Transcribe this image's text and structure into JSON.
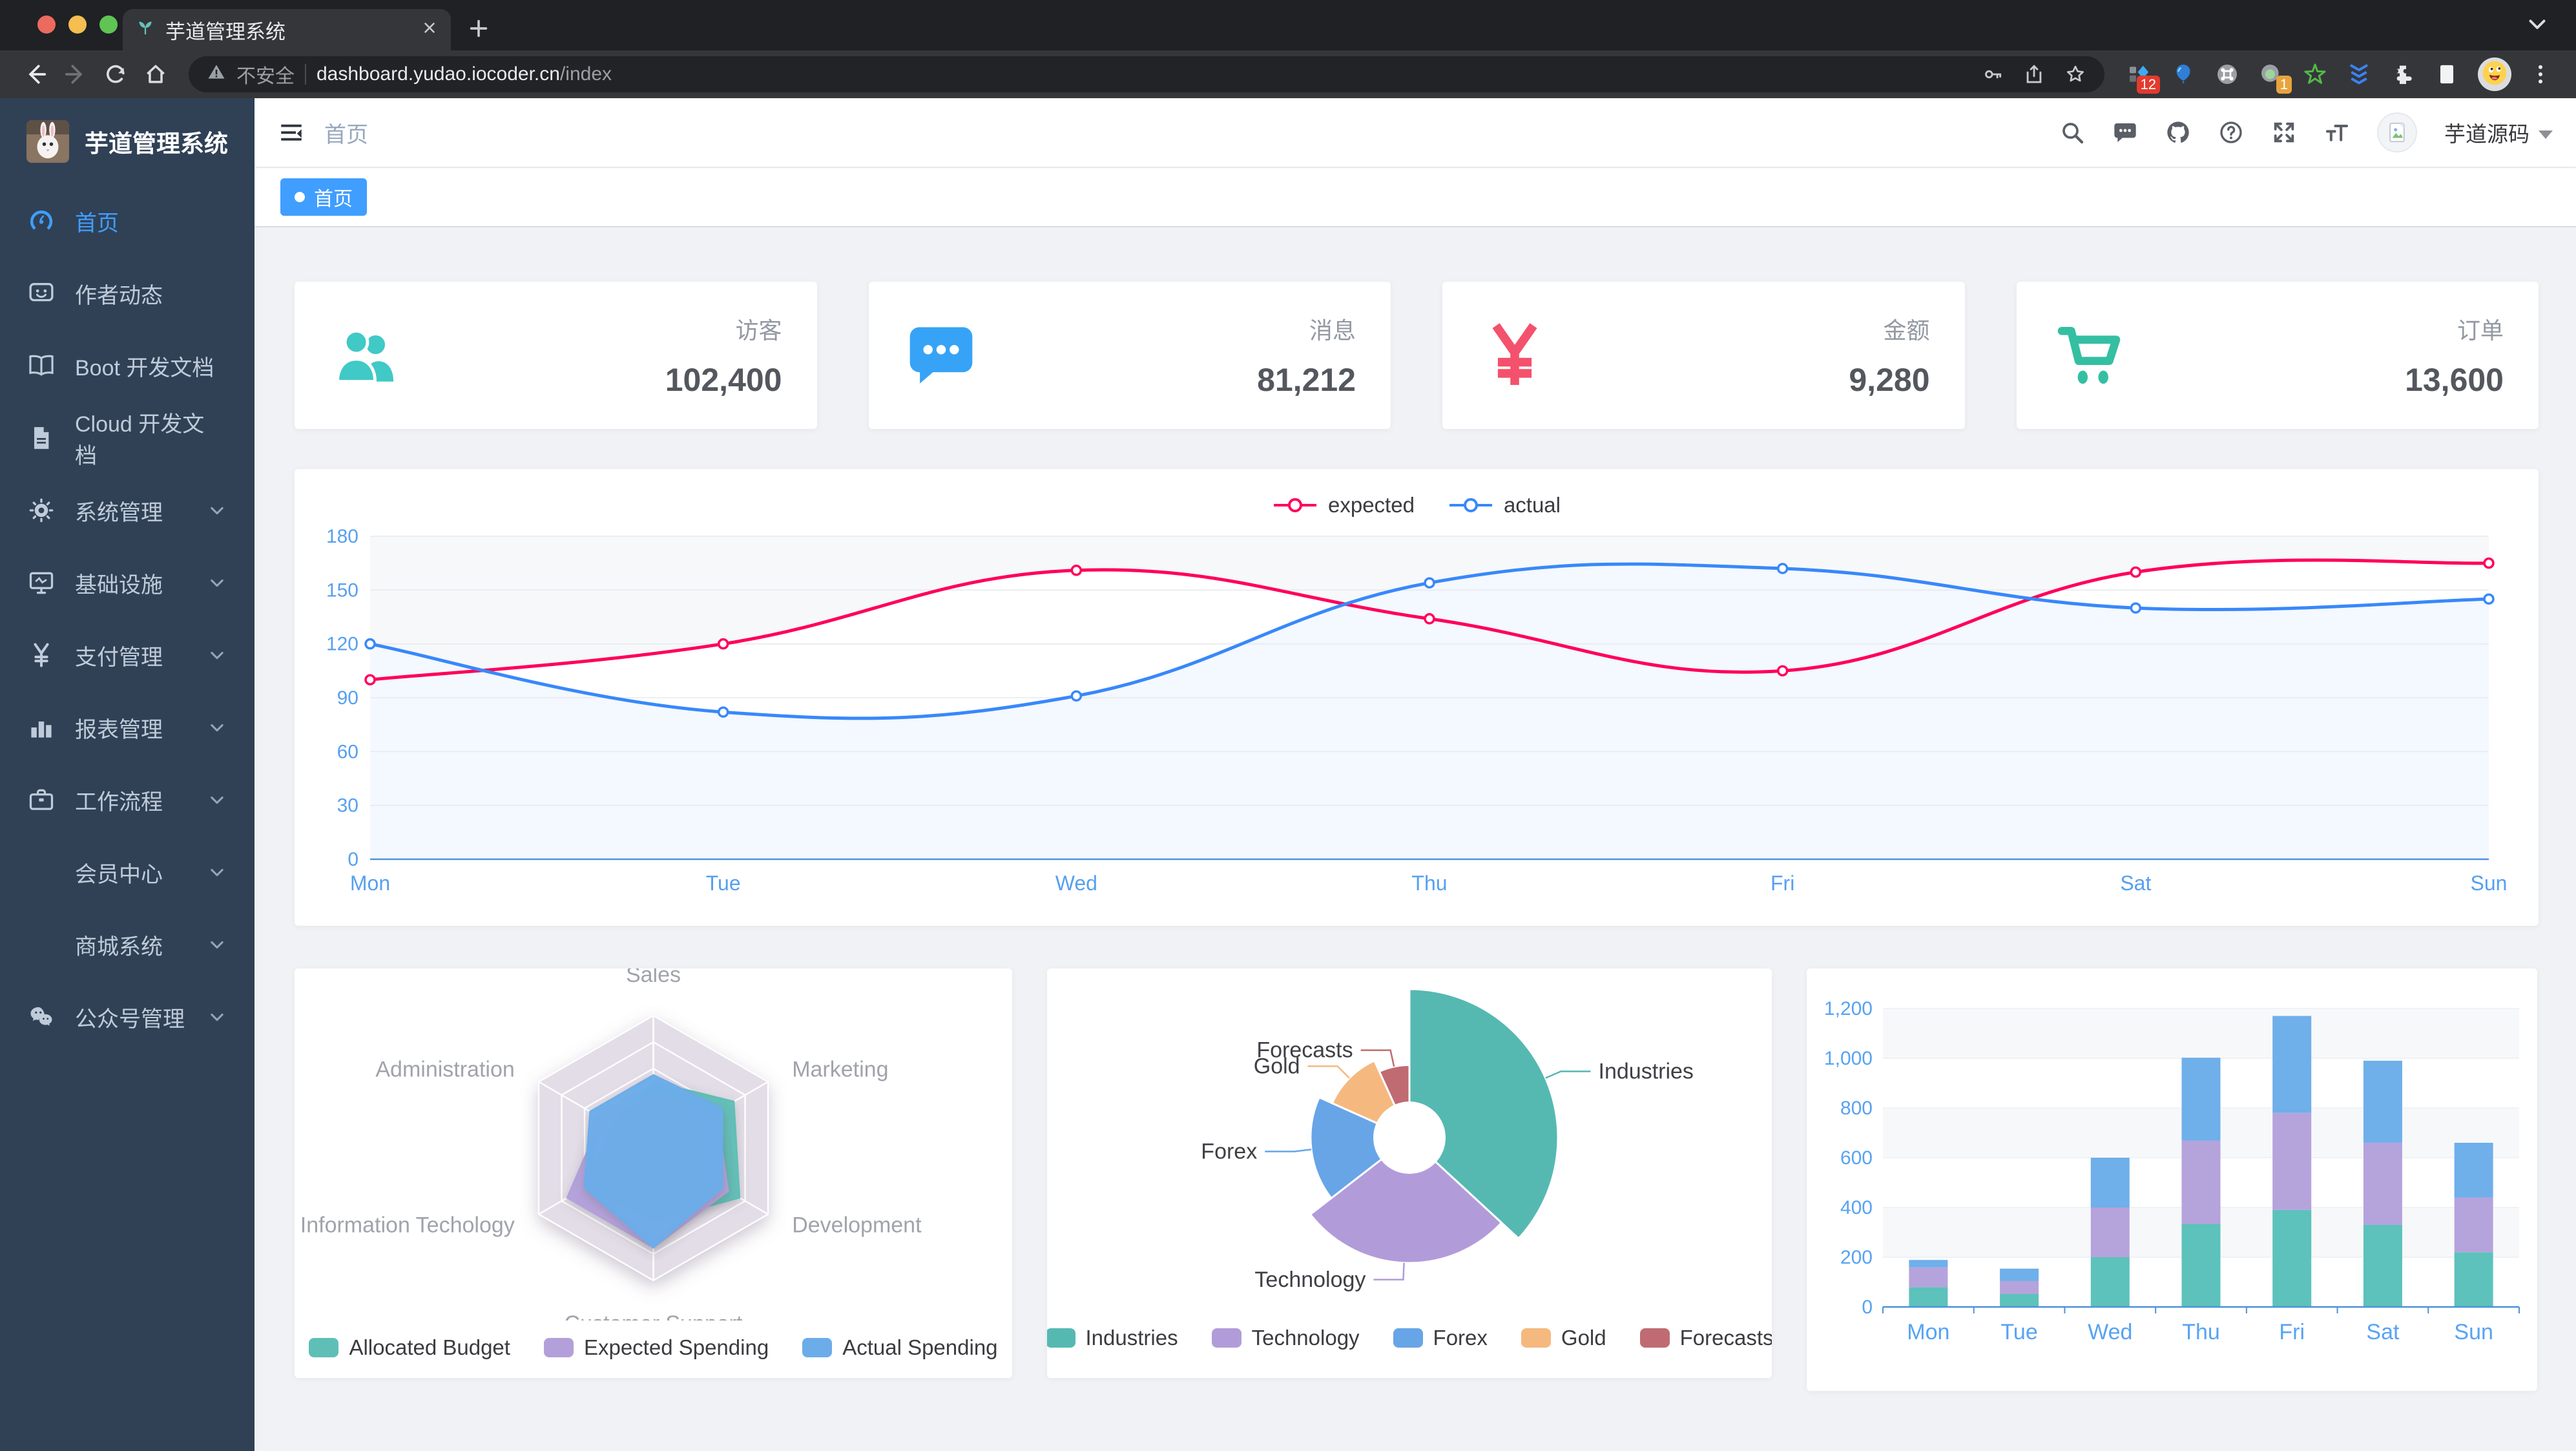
{
  "browser": {
    "tab_title": "芋道管理系统",
    "favicon": "sprout-icon",
    "traffic_lights": [
      "#EC6A5E",
      "#F4BE50",
      "#5FC454"
    ],
    "nav_buttons": [
      "back-icon",
      "forward-icon",
      "reload-icon",
      "home-icon"
    ],
    "security_label": "不安全",
    "url_host": "dashboard.yudao.iocoder.cn",
    "url_path": "/index",
    "omnibox_icons": [
      "key-icon",
      "share-icon",
      "bookmark-star-icon"
    ],
    "extensions": [
      {
        "icon": "extension-blue-diamond-icon",
        "badge": "12"
      },
      {
        "icon": "extension-balloon-icon"
      },
      {
        "icon": "extension-command-icon"
      },
      {
        "icon": "extension-green-dot-icon",
        "badge": "1"
      },
      {
        "icon": "extension-green-star-icon"
      },
      {
        "icon": "extension-blue-chevrons-icon"
      },
      {
        "icon": "extension-puzzle-icon"
      },
      {
        "icon": "extension-reader-icon"
      }
    ],
    "profile_avatar": "emoji-face-avatar",
    "menu_icon": "kebab-menu-icon",
    "tab_search_icon": "chevron-down-icon"
  },
  "sidebar": {
    "logo_title": "芋道管理系统",
    "items": [
      {
        "label": "首页",
        "icon": "dashboard-icon",
        "active": true
      },
      {
        "label": "作者动态",
        "icon": "author-feed-icon"
      },
      {
        "label": "Boot 开发文档",
        "icon": "book-icon"
      },
      {
        "label": "Cloud 开发文档",
        "icon": "document-icon"
      },
      {
        "label": "系统管理",
        "icon": "gear-icon",
        "arrow": true
      },
      {
        "label": "基础设施",
        "icon": "monitor-icon",
        "arrow": true
      },
      {
        "label": "支付管理",
        "icon": "yen-icon",
        "arrow": true
      },
      {
        "label": "报表管理",
        "icon": "bar-chart-icon",
        "arrow": true
      },
      {
        "label": "工作流程",
        "icon": "briefcase-icon",
        "arrow": true
      },
      {
        "label": "会员中心",
        "icon": null,
        "arrow": true,
        "indent": true
      },
      {
        "label": "商城系统",
        "icon": null,
        "arrow": true,
        "indent": true
      },
      {
        "label": "公众号管理",
        "icon": "wechat-icon",
        "arrow": true
      }
    ]
  },
  "navbar": {
    "hamburger": "hamburger-icon",
    "breadcrumb": "首页",
    "icons": [
      "search-icon",
      "message-icon",
      "github-icon",
      "question-icon",
      "fullscreen-icon",
      "text-size-icon"
    ],
    "avatar": "avatar-placeholder-icon",
    "username": "芋道源码",
    "caret": "caret-down-icon"
  },
  "tags": {
    "active": "首页"
  },
  "cards": [
    {
      "label": "访客",
      "value": "102,400",
      "icon": "visitors-people-icon",
      "color": "#40c9c6"
    },
    {
      "label": "消息",
      "value": "81,212",
      "icon": "messages-bubble-icon",
      "color": "#36a3f7"
    },
    {
      "label": "金额",
      "value": "9,280",
      "icon": "money-yen-icon",
      "color": "#f4516c"
    },
    {
      "label": "订单",
      "value": "13,600",
      "icon": "orders-cart-icon",
      "color": "#34bfa3"
    }
  ],
  "chart_data": [
    {
      "id": "weekly-line",
      "type": "line",
      "x": [
        "Mon",
        "Tue",
        "Wed",
        "Thu",
        "Fri",
        "Sat",
        "Sun"
      ],
      "series": [
        {
          "name": "expected",
          "color": "#FF005A",
          "area": "#FFFFFF",
          "values": [
            100,
            120,
            161,
            134,
            105,
            160,
            165
          ]
        },
        {
          "name": "actual",
          "color": "#3888FA",
          "area": "#F3F8FF",
          "values": [
            120,
            82,
            91,
            154,
            162,
            140,
            145
          ]
        }
      ],
      "ylim": [
        0,
        180
      ],
      "ytick": 30,
      "legend_position": "top",
      "axis_label_color": "#57A0F0",
      "plot_bg": "#F7F8FA"
    },
    {
      "id": "budget-radar",
      "type": "radar",
      "indicators": [
        {
          "name": "Sales",
          "max": 10000
        },
        {
          "name": "Administration",
          "max": 20000
        },
        {
          "name": "Information Techology",
          "max": 20000
        },
        {
          "name": "Customer Support",
          "max": 20000
        },
        {
          "name": "Development",
          "max": 20000
        },
        {
          "name": "Marketing",
          "max": 20000
        }
      ],
      "series": [
        {
          "name": "Allocated Budget",
          "color": "#5FBFB6",
          "values": [
            5000,
            7000,
            12000,
            11000,
            15000,
            14000
          ]
        },
        {
          "name": "Expected Spending",
          "color": "#B3A0DB",
          "values": [
            4000,
            9000,
            15000,
            15000,
            13000,
            11000
          ]
        },
        {
          "name": "Actual Spending",
          "color": "#6CACE9",
          "values": [
            5500,
            11000,
            12000,
            15000,
            12000,
            12000
          ]
        }
      ],
      "legend_position": "bottom",
      "grid_color": "#E3DDE8",
      "label_color": "#A0A3AB"
    },
    {
      "id": "sales-pie",
      "type": "pie",
      "rose": true,
      "slices": [
        {
          "name": "Industries",
          "value": 320,
          "color": "#55B9B2"
        },
        {
          "name": "Technology",
          "value": 240,
          "color": "#B19CD9"
        },
        {
          "name": "Forex",
          "value": 149,
          "color": "#67A5E7"
        },
        {
          "name": "Gold",
          "value": 100,
          "color": "#F5B97F"
        },
        {
          "name": "Forecasts",
          "value": 59,
          "color": "#C06B72"
        }
      ],
      "legend_position": "bottom",
      "label_color": "#3F3F45"
    },
    {
      "id": "weekly-bar",
      "type": "bar",
      "stacked": true,
      "categories": [
        "Mon",
        "Tue",
        "Wed",
        "Thu",
        "Fri",
        "Sat",
        "Sun"
      ],
      "series": [
        {
          "color": "#5CC2BB",
          "values": [
            79,
            52,
            200,
            334,
            390,
            330,
            220
          ]
        },
        {
          "color": "#B5A3DC",
          "values": [
            80,
            52,
            200,
            334,
            390,
            330,
            220
          ]
        },
        {
          "color": "#6FAFEA",
          "values": [
            30,
            50,
            200,
            334,
            390,
            330,
            220
          ]
        }
      ],
      "ylim": [
        0,
        1200
      ],
      "ytick": 200,
      "axis_label_color": "#57A3F3",
      "plot_band": "#F7F8FA"
    }
  ]
}
